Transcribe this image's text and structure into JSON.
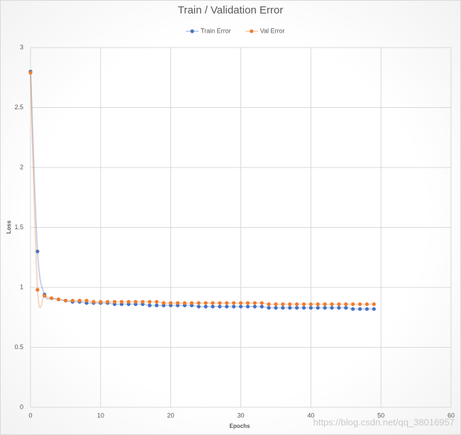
{
  "chart_data": {
    "type": "scatter-smooth",
    "title": "Train / Validation Error",
    "x_label": "Epochs",
    "y_label": "Loss",
    "x": [
      0,
      1,
      2,
      3,
      4,
      5,
      6,
      7,
      8,
      9,
      10,
      11,
      12,
      13,
      14,
      15,
      16,
      17,
      18,
      19,
      20,
      21,
      22,
      23,
      24,
      25,
      26,
      27,
      28,
      29,
      30,
      31,
      32,
      33,
      34,
      35,
      36,
      37,
      38,
      39,
      40,
      41,
      42,
      43,
      44,
      45,
      46,
      47,
      48,
      49
    ],
    "series": [
      {
        "name": "Train Error",
        "color": "#4472c4",
        "values": [
          2.8,
          1.3,
          0.94,
          0.91,
          0.9,
          0.89,
          0.88,
          0.88,
          0.87,
          0.87,
          0.87,
          0.87,
          0.86,
          0.86,
          0.86,
          0.86,
          0.86,
          0.85,
          0.85,
          0.85,
          0.85,
          0.85,
          0.85,
          0.85,
          0.84,
          0.84,
          0.84,
          0.84,
          0.84,
          0.84,
          0.84,
          0.84,
          0.84,
          0.84,
          0.83,
          0.83,
          0.83,
          0.83,
          0.83,
          0.83,
          0.83,
          0.83,
          0.83,
          0.83,
          0.83,
          0.83,
          0.82,
          0.82,
          0.82,
          0.82
        ]
      },
      {
        "name": "Val Error",
        "color": "#ed7d31",
        "values": [
          2.79,
          0.98,
          0.93,
          0.91,
          0.9,
          0.89,
          0.89,
          0.89,
          0.89,
          0.88,
          0.88,
          0.88,
          0.88,
          0.88,
          0.88,
          0.88,
          0.88,
          0.88,
          0.88,
          0.87,
          0.87,
          0.87,
          0.87,
          0.87,
          0.87,
          0.87,
          0.87,
          0.87,
          0.87,
          0.87,
          0.87,
          0.87,
          0.87,
          0.87,
          0.86,
          0.86,
          0.86,
          0.86,
          0.86,
          0.86,
          0.86,
          0.86,
          0.86,
          0.86,
          0.86,
          0.86,
          0.86,
          0.86,
          0.86,
          0.86
        ]
      }
    ],
    "xlim": [
      0,
      60
    ],
    "xticks": [
      0,
      10,
      20,
      30,
      40,
      50,
      60
    ],
    "ylim": [
      0,
      3
    ],
    "yticks": [
      0,
      0.5,
      1,
      1.5,
      2,
      2.5,
      3
    ],
    "grid": true,
    "legend": "top",
    "watermark": "https://blog.csdn.net/qq_38016957"
  }
}
